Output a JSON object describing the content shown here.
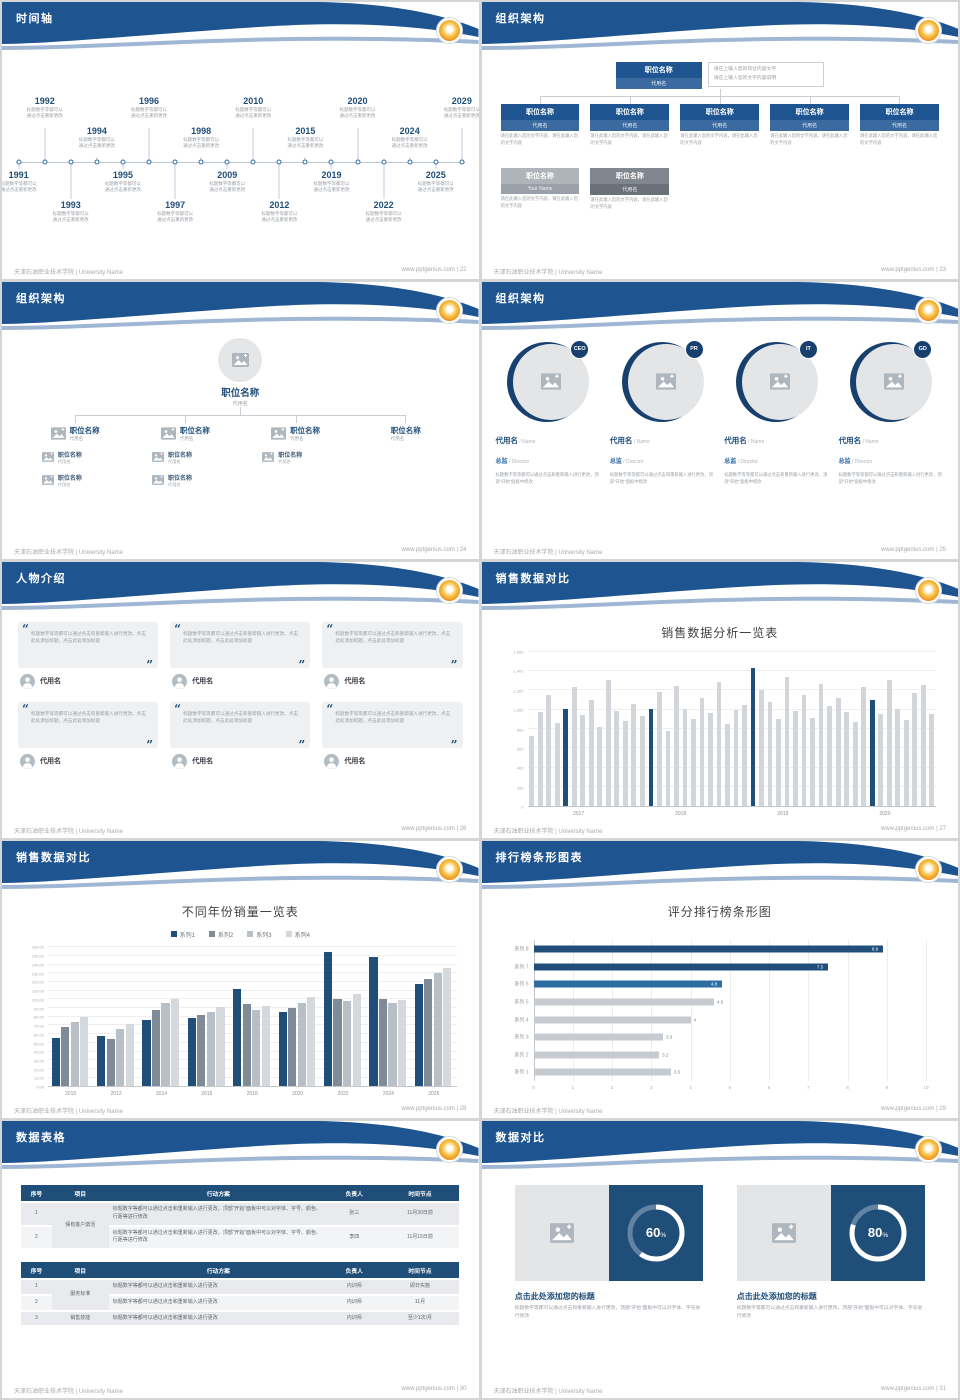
{
  "global": {
    "footer_left": "天津石油职业技术学院 | University Name",
    "footer_site": "www.pptgenius.com",
    "colors": {
      "header_blue": "#1E5590",
      "navy": "#1F4E79",
      "accent_light": "#8FAACC",
      "gray_bar": "#C7CBD0",
      "text_gray": "#9aa0a6"
    }
  },
  "slides": [
    {
      "title": "时间轴",
      "page": "22",
      "timeline": {
        "caption": "标题数字等都可以通过点击重新更改",
        "items": [
          {
            "year": "1991",
            "slot": "b1"
          },
          {
            "year": "1992",
            "slot": "t1"
          },
          {
            "year": "1993",
            "slot": "b2"
          },
          {
            "year": "1994",
            "slot": "t2"
          },
          {
            "year": "1995",
            "slot": "b1"
          },
          {
            "year": "1996",
            "slot": "t1"
          },
          {
            "year": "1997",
            "slot": "b2"
          },
          {
            "year": "1998",
            "slot": "t2"
          },
          {
            "year": "2009",
            "slot": "b1"
          },
          {
            "year": "2010",
            "slot": "t1"
          },
          {
            "year": "2012",
            "slot": "b2"
          },
          {
            "year": "2015",
            "slot": "t2"
          },
          {
            "year": "2019",
            "slot": "b1"
          },
          {
            "year": "2020",
            "slot": "t1"
          },
          {
            "year": "2022",
            "slot": "b2"
          },
          {
            "year": "2024",
            "slot": "t2"
          },
          {
            "year": "2025",
            "slot": "b1"
          },
          {
            "year": "2029",
            "slot": "t1"
          }
        ]
      }
    },
    {
      "title": "组织架构",
      "page": "23",
      "org1": {
        "root": {
          "title": "职位名称",
          "name": "代用名"
        },
        "note_lines": [
          "请在上输入您的岗位内容文字",
          "请在上输入您的文字内容说明"
        ],
        "children": [
          {
            "title": "职位名称",
            "name": "代用名",
            "caption": "请在此输入您的文字内容，请在此输入您的文字内容"
          },
          {
            "title": "职位名称",
            "name": "代用名",
            "caption": "请在此输入您的文字内容，请在此输入您的文字内容"
          },
          {
            "title": "职位名称",
            "name": "代用名",
            "caption": "请在此输入您的文字内容，请在此输入您的文字内容"
          },
          {
            "title": "职位名称",
            "name": "代用名",
            "caption": "请在此输入您的文字内容，请在此输入您的文字内容"
          },
          {
            "title": "职位名称",
            "name": "代用名",
            "caption": "请在此输入您的文字内容，请在此输入您的文字内容"
          }
        ],
        "extras": [
          {
            "title": "职位名称",
            "name": "Your Name",
            "tone": "light",
            "caption": "请在此输入您的文字内容，请在此输入您的文字内容"
          },
          {
            "title": "职位名称",
            "name": "代用名",
            "tone": "dark",
            "caption": "请在此输入您的文字内容，请在此输入您的文字内容"
          }
        ]
      }
    },
    {
      "title": "组织架构",
      "page": "24",
      "org2": {
        "root": {
          "title": "职位名称",
          "name": "代用名"
        },
        "branches": [
          {
            "title": "职位名称",
            "name": "代用名",
            "icon": true,
            "subs": [
              {
                "title": "职位名称",
                "name": "代用名"
              },
              {
                "title": "职位名称",
                "name": "代用名"
              }
            ]
          },
          {
            "title": "职位名称",
            "name": "代用名",
            "icon": true,
            "subs": [
              {
                "title": "职位名称",
                "name": "代用名"
              },
              {
                "title": "职位名称",
                "name": "代用名"
              }
            ]
          },
          {
            "title": "职位名称",
            "name": "代用名",
            "icon": true,
            "subs": [
              {
                "title": "职位名称",
                "name": "代用名"
              }
            ]
          },
          {
            "title": "职位名称",
            "name": "代用名",
            "icon": false,
            "subs": []
          }
        ]
      }
    },
    {
      "title": "组织架构",
      "page": "25",
      "circles": {
        "desc": "标题数字等等都可以通过点击和重新输入进行更改，顶部“开始”面板中修改",
        "items": [
          {
            "badge": "CEO",
            "name": "代用名",
            "name_en": "/ Name",
            "role": "总监",
            "role_en": "/ Director"
          },
          {
            "badge": "PR",
            "name": "代用名",
            "name_en": "/ Name",
            "role": "总监",
            "role_en": "/ Director"
          },
          {
            "badge": "IT",
            "name": "代用名",
            "name_en": "/ Name",
            "role": "总监",
            "role_en": "/ Director"
          },
          {
            "badge": "GD",
            "name": "代用名",
            "name_en": "/ Name",
            "role": "总监",
            "role_en": "/ Director"
          }
        ]
      }
    },
    {
      "title": "人物介绍",
      "page": "26",
      "people": {
        "quote": "标题数字等等都可以通过点击和重新输入进行更改，点击此处添加标题，点击此处添加标题",
        "cards": [
          {
            "name": "代用名"
          },
          {
            "name": "代用名"
          },
          {
            "name": "代用名"
          },
          {
            "name": "代用名"
          },
          {
            "name": "代用名"
          },
          {
            "name": "代用名"
          }
        ]
      }
    },
    {
      "title": "销售数据对比",
      "page": "27",
      "chart_ref": 0
    },
    {
      "title": "销售数据对比",
      "page": "28",
      "chart_ref": 1
    },
    {
      "title": "排行榜条形图表",
      "page": "29",
      "chart_ref": 2
    },
    {
      "title": "数据表格",
      "page": "30",
      "tables": [
        {
          "headers": [
            "序号",
            "项目",
            "行动方案",
            "负责人",
            "时间节点"
          ],
          "rows": [
            [
              "1",
              "保有客户激活",
              "标题数字等都可以通过点击和重新输入进行更改，顶部“开始”面板中可以对字体、字号、颜色、行距等进行修改",
              "张三",
              "11月30日前"
            ],
            [
              "2",
              "",
              "标题数字等都可以通过点击和重新输入进行更改，顶部“开始”面板中可以对字体、字号、颜色、行距等进行修改",
              "李四",
              "11月15日前"
            ]
          ]
        },
        {
          "headers": [
            "序号",
            "项目",
            "行动方案",
            "负责人",
            "时间节点"
          ],
          "rows": [
            [
              "1",
              "服务标准",
              "标题数字等都可以通过点击和重新输入进行更改",
              "内训师",
              "即日实施"
            ],
            [
              "2",
              "",
              "标题数字等都可以通过点击和重新输入进行更改",
              "内训师",
              "11月"
            ],
            [
              "3",
              "销售技能",
              "标题数字等都可以通过点击和重新输入进行更改",
              "内训师",
              "至少1次/月"
            ]
          ]
        }
      ]
    },
    {
      "title": "数据对比",
      "page": "31",
      "compare": {
        "desc": "标题数字等都可以通过点击和重新输入进行更改，顶部“开始”面板中可以对字体、字号进行修改",
        "items": [
          {
            "percent": 60,
            "heading": "点击此处添加您的标题"
          },
          {
            "percent": 80,
            "heading": "点击此处添加您的标题"
          }
        ]
      }
    }
  ],
  "chart_data": [
    {
      "type": "bar",
      "title": "销售数据分析一览表",
      "xlabel": "",
      "ylabel": "",
      "x_groups": [
        "2017",
        "2018",
        "2019",
        "2020"
      ],
      "values": [
        730,
        980,
        1150,
        860,
        1005,
        1230,
        940,
        1100,
        820,
        1310,
        990,
        880,
        1060,
        930,
        1008,
        1180,
        780,
        1240,
        1010,
        900,
        1120,
        970,
        1290,
        850,
        1000,
        1050,
        1430,
        1200,
        1080,
        900,
        1340,
        990,
        1150,
        910,
        1270,
        1040,
        1120,
        980,
        870,
        1230,
        1100,
        950,
        1310,
        1010,
        890,
        1170,
        1260,
        960
      ],
      "highlight_indices": [
        4,
        14,
        26,
        40
      ],
      "bar_color": "#D2D6DA",
      "highlight_color": "#1F4E79",
      "ylim": [
        0,
        1600
      ],
      "ytick_step": 200,
      "grid": true
    },
    {
      "type": "bar-grouped",
      "title": "不同年份销量一览表",
      "xlabel": "",
      "ylabel": "",
      "categories": [
        "2010",
        "2012",
        "2014",
        "2016",
        "2018",
        "2020",
        "2022",
        "2024",
        "2026"
      ],
      "series": [
        {
          "name": "系列1",
          "color": "#1F4E79",
          "values": [
            55,
            58,
            76,
            79,
            112,
            86,
            155,
            149,
            118
          ]
        },
        {
          "name": "系列2",
          "color": "#7F8B96",
          "values": [
            68,
            54,
            88,
            82,
            95,
            90,
            100,
            101,
            124
          ]
        },
        {
          "name": "系列3",
          "color": "#B9BFC6",
          "values": [
            74,
            66,
            96,
            86,
            88,
            96,
            98,
            96,
            130
          ]
        },
        {
          "name": "系列4",
          "color": "#D5D9DD",
          "values": [
            80,
            72,
            101,
            91,
            93,
            103,
            106,
            99,
            136
          ]
        }
      ],
      "ylim": [
        0,
        160
      ],
      "ytick_step": 10,
      "grid": true,
      "legend_position": "top"
    },
    {
      "type": "bar-horizontal",
      "title": "评分排行榜条形图",
      "xlabel": "",
      "ylabel": "",
      "categories": [
        "系列 8",
        "系列 7",
        "系列 6",
        "系列 5",
        "系列 4",
        "系列 3",
        "系列 2",
        "系列 1"
      ],
      "values": [
        8.9,
        7.5,
        4.8,
        4.6,
        4,
        3.3,
        3.2,
        3.5
      ],
      "colors": [
        "#1F4E79",
        "#1F4E79",
        "#2E6DA4",
        "#C7CBD0",
        "#C7CBD0",
        "#C7CBD0",
        "#C7CBD0",
        "#C7CBD0"
      ],
      "xlim": [
        0,
        10
      ],
      "xtick_step": 1,
      "grid": true
    }
  ]
}
